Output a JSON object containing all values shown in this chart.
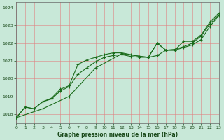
{
  "xlabel": "Graphe pression niveau de la mer (hPa)",
  "background_color": "#c8e8d8",
  "grid_color": "#e08080",
  "line_color": "#1a6b1a",
  "xlim": [
    0,
    23
  ],
  "ylim": [
    1017.5,
    1024.3
  ],
  "yticks": [
    1018,
    1019,
    1020,
    1021,
    1022,
    1023,
    1024
  ],
  "xticks": [
    0,
    1,
    2,
    3,
    4,
    5,
    6,
    7,
    8,
    9,
    10,
    11,
    12,
    13,
    14,
    15,
    16,
    17,
    18,
    19,
    20,
    21,
    22,
    23
  ],
  "series1": {
    "x": [
      0,
      1,
      2,
      3,
      4,
      5,
      6,
      7,
      8,
      9,
      10,
      11,
      12,
      13,
      14,
      15,
      16,
      17,
      18,
      19,
      20,
      21,
      22,
      23
    ],
    "y": [
      1017.8,
      1018.4,
      1018.3,
      1018.7,
      1018.85,
      1019.3,
      1019.55,
      1020.25,
      1020.6,
      1020.95,
      1021.2,
      1021.3,
      1021.35,
      1021.25,
      1021.2,
      1021.2,
      1021.3,
      1021.6,
      1021.6,
      1021.75,
      1021.9,
      1022.2,
      1022.95,
      1023.55
    ]
  },
  "series2": {
    "x": [
      0,
      1,
      2,
      3,
      4,
      5,
      6,
      7,
      8,
      9,
      10,
      11,
      12,
      13,
      14,
      15,
      16,
      17,
      18,
      19,
      20,
      21,
      22,
      23
    ],
    "y": [
      1017.8,
      1018.4,
      1018.3,
      1018.7,
      1018.9,
      1019.4,
      1019.6,
      1020.8,
      1021.05,
      1021.2,
      1021.35,
      1021.45,
      1021.45,
      1021.35,
      1021.25,
      1021.2,
      1022.0,
      1021.6,
      1021.65,
      1021.8,
      1022.0,
      1022.4,
      1023.1,
      1023.6
    ]
  },
  "series3": {
    "x": [
      0,
      3,
      6,
      9,
      12,
      15,
      16,
      17,
      18,
      19,
      20,
      21,
      22,
      23
    ],
    "y": [
      1017.8,
      1018.3,
      1019.0,
      1020.6,
      1021.4,
      1021.2,
      1022.0,
      1021.6,
      1021.6,
      1022.1,
      1022.1,
      1022.45,
      1023.2,
      1023.7
    ]
  }
}
